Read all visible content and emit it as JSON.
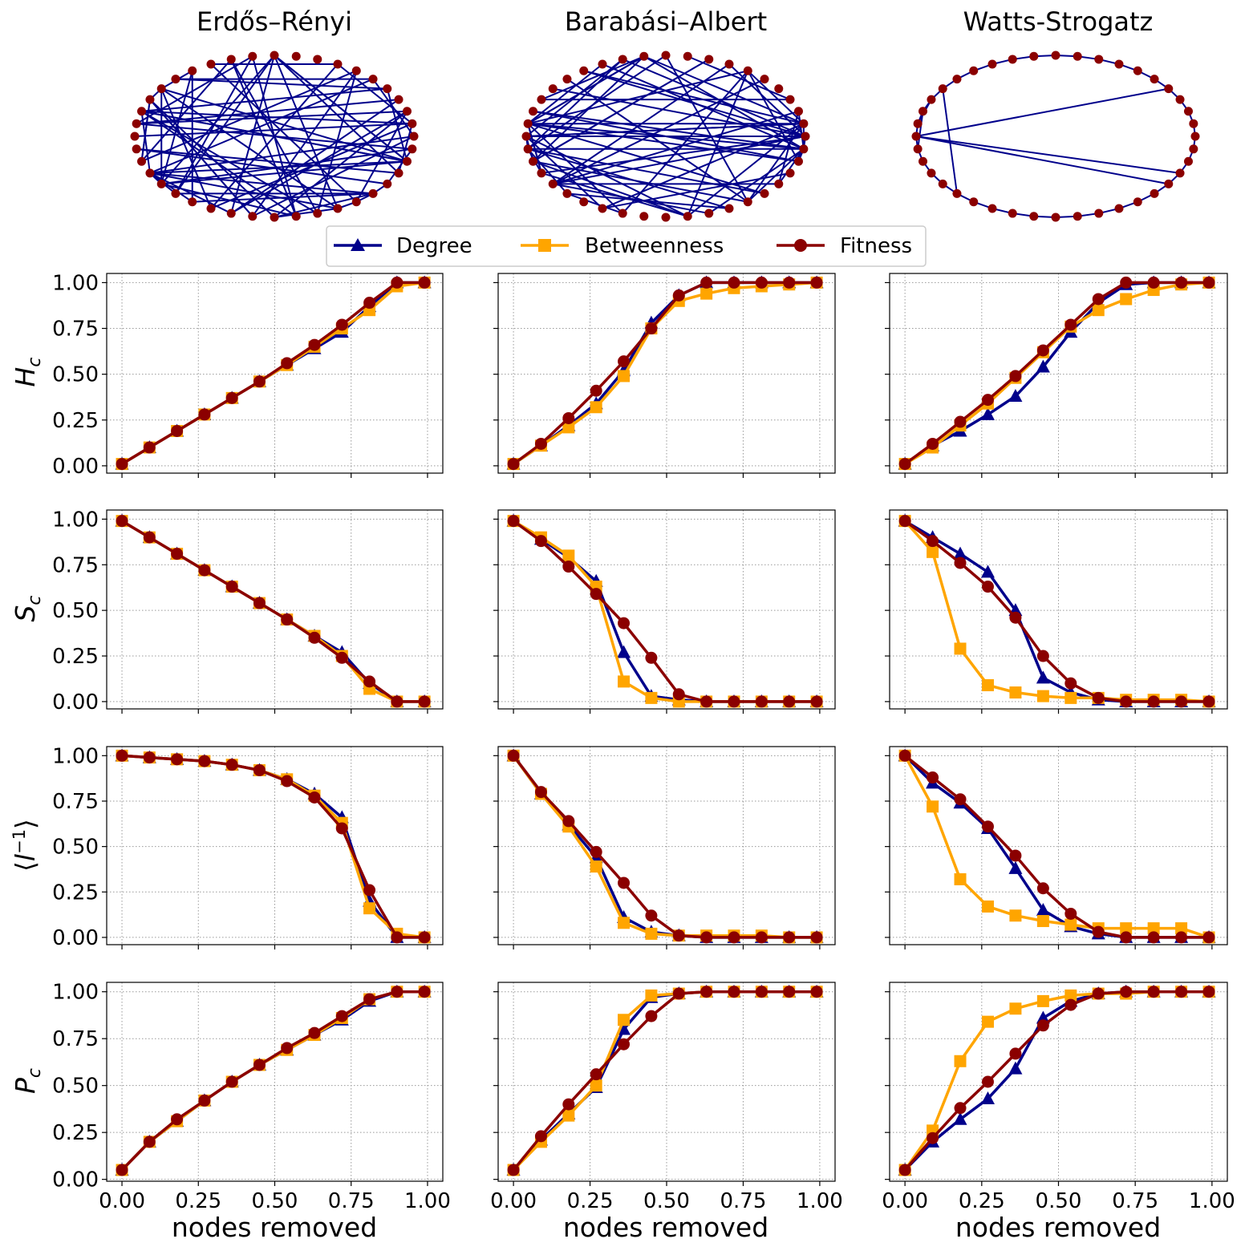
{
  "figure": {
    "columns": [
      "Erdős–Rényi",
      "Barabási–Albert",
      "Watts-Strogatz"
    ],
    "xlabel": "nodes removed",
    "ylabels": [
      "Hc",
      "Sc",
      "⟨l⁻¹⟩",
      "Pc"
    ],
    "xticks": [
      "0.00",
      "0.25",
      "0.50",
      "0.75",
      "1.00"
    ],
    "yticks": [
      "0.00",
      "0.25",
      "0.50",
      "0.75",
      "1.00"
    ],
    "legend": [
      {
        "label": "Degree",
        "color": "#00008B",
        "marker": "triangle"
      },
      {
        "label": "Betweenness",
        "color": "#FFA500",
        "marker": "square"
      },
      {
        "label": "Fitness",
        "color": "#8B0000",
        "marker": "circle"
      }
    ],
    "network": {
      "nodes": 40,
      "edge_color": "#00008B",
      "node_color": "#8B0000"
    }
  },
  "chart_data": [
    {
      "type": "line",
      "row": 0,
      "col": 0,
      "ylabel": "Hc",
      "xlabel": "",
      "xlim": [
        -0.05,
        1.05
      ],
      "ylim": [
        -0.04,
        1.05
      ],
      "x": [
        0,
        0.09,
        0.18,
        0.27,
        0.36,
        0.45,
        0.54,
        0.63,
        0.72,
        0.81,
        0.9,
        0.99
      ],
      "series": [
        {
          "name": "Degree",
          "values": [
            0.01,
            0.1,
            0.19,
            0.28,
            0.37,
            0.46,
            0.55,
            0.64,
            0.73,
            0.87,
            1.0,
            1.0
          ]
        },
        {
          "name": "Betweenness",
          "values": [
            0.01,
            0.1,
            0.19,
            0.28,
            0.37,
            0.46,
            0.55,
            0.65,
            0.75,
            0.85,
            0.98,
            1.0
          ]
        },
        {
          "name": "Fitness",
          "values": [
            0.01,
            0.1,
            0.19,
            0.28,
            0.37,
            0.46,
            0.56,
            0.66,
            0.77,
            0.89,
            1.0,
            1.0
          ]
        }
      ]
    },
    {
      "type": "line",
      "row": 0,
      "col": 1,
      "ylabel": "",
      "xlabel": "",
      "xlim": [
        -0.05,
        1.05
      ],
      "ylim": [
        -0.04,
        1.05
      ],
      "x": [
        0,
        0.09,
        0.18,
        0.27,
        0.36,
        0.45,
        0.54,
        0.63,
        0.72,
        0.81,
        0.9,
        0.99
      ],
      "series": [
        {
          "name": "Degree",
          "values": [
            0.01,
            0.11,
            0.22,
            0.34,
            0.52,
            0.78,
            0.93,
            1.0,
            1.0,
            1.0,
            1.0,
            1.0
          ]
        },
        {
          "name": "Betweenness",
          "values": [
            0.01,
            0.11,
            0.21,
            0.32,
            0.49,
            0.75,
            0.9,
            0.94,
            0.97,
            0.98,
            0.99,
            1.0
          ]
        },
        {
          "name": "Fitness",
          "values": [
            0.01,
            0.12,
            0.26,
            0.41,
            0.57,
            0.75,
            0.93,
            1.0,
            1.0,
            1.0,
            1.0,
            1.0
          ]
        }
      ]
    },
    {
      "type": "line",
      "row": 0,
      "col": 2,
      "ylabel": "",
      "xlabel": "",
      "xlim": [
        -0.05,
        1.05
      ],
      "ylim": [
        -0.04,
        1.05
      ],
      "x": [
        0,
        0.09,
        0.18,
        0.27,
        0.36,
        0.45,
        0.54,
        0.63,
        0.72,
        0.81,
        0.9,
        0.99
      ],
      "series": [
        {
          "name": "Degree",
          "values": [
            0.01,
            0.11,
            0.19,
            0.28,
            0.38,
            0.54,
            0.73,
            0.89,
            0.99,
            1.0,
            1.0,
            1.0
          ]
        },
        {
          "name": "Betweenness",
          "values": [
            0.01,
            0.1,
            0.22,
            0.34,
            0.48,
            0.62,
            0.76,
            0.85,
            0.91,
            0.96,
            0.99,
            1.0
          ]
        },
        {
          "name": "Fitness",
          "values": [
            0.01,
            0.12,
            0.24,
            0.36,
            0.49,
            0.63,
            0.77,
            0.91,
            1.0,
            1.0,
            1.0,
            1.0
          ]
        }
      ]
    },
    {
      "type": "line",
      "row": 1,
      "col": 0,
      "ylabel": "Sc",
      "xlabel": "",
      "xlim": [
        -0.05,
        1.05
      ],
      "ylim": [
        -0.04,
        1.05
      ],
      "x": [
        0,
        0.09,
        0.18,
        0.27,
        0.36,
        0.45,
        0.54,
        0.63,
        0.72,
        0.81,
        0.9,
        0.99
      ],
      "series": [
        {
          "name": "Degree",
          "values": [
            0.99,
            0.9,
            0.81,
            0.72,
            0.63,
            0.54,
            0.45,
            0.36,
            0.27,
            0.1,
            0.0,
            0.0
          ]
        },
        {
          "name": "Betweenness",
          "values": [
            0.99,
            0.9,
            0.81,
            0.72,
            0.63,
            0.54,
            0.45,
            0.36,
            0.25,
            0.07,
            0.0,
            0.0
          ]
        },
        {
          "name": "Fitness",
          "values": [
            0.99,
            0.9,
            0.81,
            0.72,
            0.63,
            0.54,
            0.45,
            0.35,
            0.24,
            0.11,
            0.0,
            0.0
          ]
        }
      ]
    },
    {
      "type": "line",
      "row": 1,
      "col": 1,
      "ylabel": "",
      "xlabel": "",
      "xlim": [
        -0.05,
        1.05
      ],
      "ylim": [
        -0.04,
        1.05
      ],
      "x": [
        0,
        0.09,
        0.18,
        0.27,
        0.36,
        0.45,
        0.54,
        0.63,
        0.72,
        0.81,
        0.9,
        0.99
      ],
      "series": [
        {
          "name": "Degree",
          "values": [
            0.99,
            0.89,
            0.79,
            0.66,
            0.27,
            0.03,
            0.01,
            0.0,
            0.0,
            0.0,
            0.0,
            0.0
          ]
        },
        {
          "name": "Betweenness",
          "values": [
            0.99,
            0.9,
            0.8,
            0.63,
            0.11,
            0.02,
            0.0,
            0.0,
            0.0,
            0.0,
            0.0,
            0.0
          ]
        },
        {
          "name": "Fitness",
          "values": [
            0.99,
            0.88,
            0.74,
            0.59,
            0.43,
            0.24,
            0.04,
            0.0,
            0.0,
            0.0,
            0.0,
            0.0
          ]
        }
      ]
    },
    {
      "type": "line",
      "row": 1,
      "col": 2,
      "ylabel": "",
      "xlabel": "",
      "xlim": [
        -0.05,
        1.05
      ],
      "ylim": [
        -0.04,
        1.05
      ],
      "x": [
        0,
        0.09,
        0.18,
        0.27,
        0.36,
        0.45,
        0.54,
        0.63,
        0.72,
        0.81,
        0.9,
        0.99
      ],
      "series": [
        {
          "name": "Degree",
          "values": [
            0.99,
            0.9,
            0.81,
            0.71,
            0.5,
            0.13,
            0.05,
            0.01,
            0.0,
            0.0,
            0.0,
            0.0
          ]
        },
        {
          "name": "Betweenness",
          "values": [
            0.99,
            0.82,
            0.29,
            0.09,
            0.05,
            0.03,
            0.02,
            0.02,
            0.01,
            0.01,
            0.01,
            0.0
          ]
        },
        {
          "name": "Fitness",
          "values": [
            0.99,
            0.88,
            0.76,
            0.63,
            0.46,
            0.25,
            0.1,
            0.02,
            0.0,
            0.0,
            0.0,
            0.0
          ]
        }
      ]
    },
    {
      "type": "line",
      "row": 2,
      "col": 0,
      "ylabel": "⟨l⁻¹⟩",
      "xlabel": "",
      "xlim": [
        -0.05,
        1.05
      ],
      "ylim": [
        -0.04,
        1.05
      ],
      "x": [
        0,
        0.09,
        0.18,
        0.27,
        0.36,
        0.45,
        0.54,
        0.63,
        0.72,
        0.81,
        0.9,
        0.99
      ],
      "series": [
        {
          "name": "Degree",
          "values": [
            1.0,
            0.99,
            0.98,
            0.97,
            0.95,
            0.92,
            0.87,
            0.79,
            0.66,
            0.2,
            0.0,
            0.0
          ]
        },
        {
          "name": "Betweenness",
          "values": [
            1.0,
            0.99,
            0.98,
            0.97,
            0.95,
            0.92,
            0.87,
            0.78,
            0.63,
            0.16,
            0.02,
            0.0
          ]
        },
        {
          "name": "Fitness",
          "values": [
            1.0,
            0.99,
            0.98,
            0.97,
            0.95,
            0.92,
            0.86,
            0.77,
            0.6,
            0.26,
            0.0,
            0.0
          ]
        }
      ]
    },
    {
      "type": "line",
      "row": 2,
      "col": 1,
      "ylabel": "",
      "xlabel": "",
      "xlim": [
        -0.05,
        1.05
      ],
      "ylim": [
        -0.04,
        1.05
      ],
      "x": [
        0,
        0.09,
        0.18,
        0.27,
        0.36,
        0.45,
        0.54,
        0.63,
        0.72,
        0.81,
        0.9,
        0.99
      ],
      "series": [
        {
          "name": "Degree",
          "values": [
            1.0,
            0.79,
            0.62,
            0.44,
            0.11,
            0.03,
            0.01,
            0.0,
            0.0,
            0.0,
            0.0,
            0.0
          ]
        },
        {
          "name": "Betweenness",
          "values": [
            1.0,
            0.79,
            0.61,
            0.39,
            0.08,
            0.02,
            0.01,
            0.01,
            0.01,
            0.01,
            0.0,
            0.0
          ]
        },
        {
          "name": "Fitness",
          "values": [
            1.0,
            0.8,
            0.64,
            0.47,
            0.3,
            0.12,
            0.01,
            0.0,
            0.0,
            0.0,
            0.0,
            0.0
          ]
        }
      ]
    },
    {
      "type": "line",
      "row": 2,
      "col": 2,
      "ylabel": "",
      "xlabel": "",
      "xlim": [
        -0.05,
        1.05
      ],
      "ylim": [
        -0.04,
        1.05
      ],
      "x": [
        0,
        0.09,
        0.18,
        0.27,
        0.36,
        0.45,
        0.54,
        0.63,
        0.72,
        0.81,
        0.9,
        0.99
      ],
      "series": [
        {
          "name": "Degree",
          "values": [
            1.0,
            0.85,
            0.74,
            0.6,
            0.38,
            0.15,
            0.06,
            0.02,
            0.0,
            0.0,
            0.0,
            0.0
          ]
        },
        {
          "name": "Betweenness",
          "values": [
            1.0,
            0.72,
            0.32,
            0.17,
            0.12,
            0.09,
            0.07,
            0.05,
            0.05,
            0.05,
            0.05,
            0.0
          ]
        },
        {
          "name": "Fitness",
          "values": [
            1.0,
            0.88,
            0.76,
            0.61,
            0.45,
            0.27,
            0.13,
            0.03,
            0.0,
            0.0,
            0.0,
            0.0
          ]
        }
      ]
    },
    {
      "type": "line",
      "row": 3,
      "col": 0,
      "ylabel": "Pc",
      "xlabel": "nodes removed",
      "xlim": [
        -0.05,
        1.05
      ],
      "ylim": [
        -0.01,
        1.05
      ],
      "x": [
        0,
        0.09,
        0.18,
        0.27,
        0.36,
        0.45,
        0.54,
        0.63,
        0.72,
        0.81,
        0.9,
        0.99
      ],
      "series": [
        {
          "name": "Degree",
          "values": [
            0.05,
            0.2,
            0.31,
            0.42,
            0.52,
            0.61,
            0.69,
            0.77,
            0.85,
            0.95,
            1.0,
            1.0
          ]
        },
        {
          "name": "Betweenness",
          "values": [
            0.05,
            0.2,
            0.31,
            0.42,
            0.52,
            0.61,
            0.69,
            0.77,
            0.86,
            0.96,
            1.0,
            1.0
          ]
        },
        {
          "name": "Fitness",
          "values": [
            0.05,
            0.2,
            0.32,
            0.42,
            0.52,
            0.61,
            0.7,
            0.78,
            0.87,
            0.96,
            1.0,
            1.0
          ]
        }
      ]
    },
    {
      "type": "line",
      "row": 3,
      "col": 1,
      "ylabel": "",
      "xlabel": "nodes removed",
      "xlim": [
        -0.05,
        1.05
      ],
      "ylim": [
        -0.01,
        1.05
      ],
      "x": [
        0,
        0.09,
        0.18,
        0.27,
        0.36,
        0.45,
        0.54,
        0.63,
        0.72,
        0.81,
        0.9,
        0.99
      ],
      "series": [
        {
          "name": "Degree",
          "values": [
            0.05,
            0.21,
            0.35,
            0.49,
            0.8,
            0.97,
            0.99,
            1.0,
            1.0,
            1.0,
            1.0,
            1.0
          ]
        },
        {
          "name": "Betweenness",
          "values": [
            0.05,
            0.2,
            0.34,
            0.5,
            0.85,
            0.98,
            0.99,
            1.0,
            1.0,
            1.0,
            1.0,
            1.0
          ]
        },
        {
          "name": "Fitness",
          "values": [
            0.05,
            0.23,
            0.4,
            0.56,
            0.72,
            0.87,
            0.99,
            1.0,
            1.0,
            1.0,
            1.0,
            1.0
          ]
        }
      ]
    },
    {
      "type": "line",
      "row": 3,
      "col": 2,
      "ylabel": "",
      "xlabel": "nodes removed",
      "xlim": [
        -0.05,
        1.05
      ],
      "ylim": [
        -0.01,
        1.05
      ],
      "x": [
        0,
        0.09,
        0.18,
        0.27,
        0.36,
        0.45,
        0.54,
        0.63,
        0.72,
        0.81,
        0.9,
        0.99
      ],
      "series": [
        {
          "name": "Degree",
          "values": [
            0.05,
            0.2,
            0.32,
            0.43,
            0.59,
            0.86,
            0.95,
            0.99,
            1.0,
            1.0,
            1.0,
            1.0
          ]
        },
        {
          "name": "Betweenness",
          "values": [
            0.05,
            0.26,
            0.63,
            0.84,
            0.91,
            0.95,
            0.98,
            0.99,
            0.99,
            1.0,
            1.0,
            1.0
          ]
        },
        {
          "name": "Fitness",
          "values": [
            0.05,
            0.22,
            0.38,
            0.52,
            0.67,
            0.82,
            0.93,
            0.99,
            1.0,
            1.0,
            1.0,
            1.0
          ]
        }
      ]
    }
  ]
}
